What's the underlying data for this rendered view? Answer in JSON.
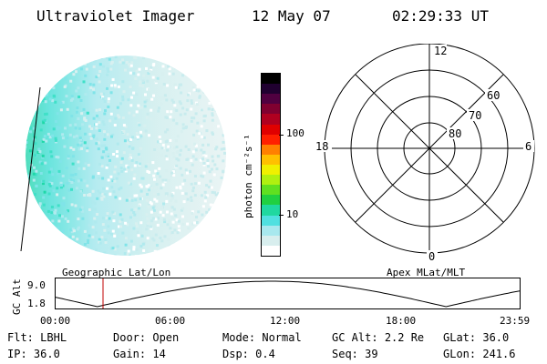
{
  "header": {
    "instrument": "Ultraviolet Imager",
    "date": "12 May 07",
    "time": "02:29:33 UT"
  },
  "colorbar": {
    "unit_label": "photon cm⁻²s⁻¹",
    "ticks": [
      "100",
      "10"
    ],
    "colors": [
      "#ffffff",
      "#d8eeee",
      "#a8e8ee",
      "#50e0e0",
      "#20d8a0",
      "#20d040",
      "#60e020",
      "#b0f010",
      "#f0f000",
      "#ffc000",
      "#ff8000",
      "#ff2000",
      "#e00000",
      "#b00020",
      "#800030",
      "#500040",
      "#200030",
      "#000000"
    ]
  },
  "polar": {
    "mlt_labels": {
      "top": "12",
      "left": "18",
      "right": "6",
      "bottom": "0"
    },
    "lat_labels": [
      "60",
      "70",
      "80"
    ]
  },
  "timeline": {
    "y_axis_label": "GC Alt",
    "y_ticks": [
      "9.0",
      "1.8"
    ],
    "left_title": "Geographic Lat/Lon",
    "right_title": "Apex  MLat/MLT",
    "x_ticks": [
      "00:00",
      "06:00",
      "12:00",
      "18:00",
      "23:59"
    ],
    "marker_time": "02:29:33"
  },
  "info": {
    "row1": [
      {
        "label": "Flt:",
        "value": "LBHL"
      },
      {
        "label": "Door:",
        "value": "Open"
      },
      {
        "label": "Mode:",
        "value": "Normal"
      },
      {
        "label": "GC Alt:",
        "value": "2.2 Re"
      },
      {
        "label": "GLat:",
        "value": "36.0"
      }
    ],
    "row2": [
      {
        "label": "IP:",
        "value": "36.0"
      },
      {
        "label": "Gain:",
        "value": "14"
      },
      {
        "label": "Dsp:",
        "value": "0.4"
      },
      {
        "label": "Seq:",
        "value": "39"
      },
      {
        "label": "GLon:",
        "value": "241.6"
      }
    ]
  }
}
